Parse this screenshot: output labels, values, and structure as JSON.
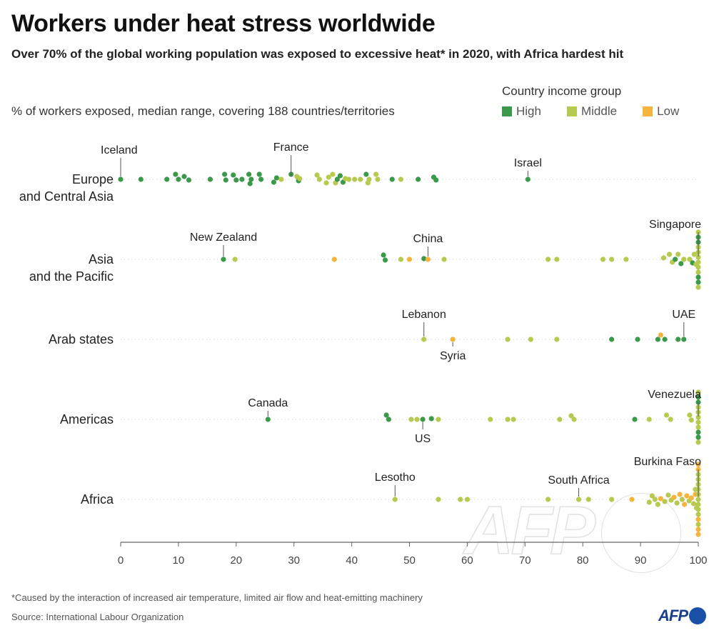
{
  "title": "Workers under heat stress worldwide",
  "subtitle": "Over 70% of the global working population was exposed to excessive heat* in 2020, with Africa hardest hit",
  "unit_label": "% of workers exposed, median range, covering 188 countries/territories",
  "legend": {
    "title": "Country income group",
    "items": [
      {
        "label": "High",
        "color": "#3a9a4a"
      },
      {
        "label": "Middle",
        "color": "#b7c94e"
      },
      {
        "label": "Low",
        "color": "#f5b43d"
      }
    ]
  },
  "footnote": "*Caused by the interaction of increased air temperature, limited air flow and heat-emitting machinery",
  "source": "Source: International Labour Organization",
  "logo": "AFP",
  "chart_data": {
    "type": "scatter",
    "xlim": [
      0,
      100
    ],
    "xticks": [
      0,
      10,
      20,
      30,
      40,
      50,
      60,
      70,
      80,
      90,
      100
    ],
    "grid": "dotted horizontal row guides",
    "colors": {
      "high": "#3a9a4a",
      "middle": "#b7c94e",
      "low": "#f5b43d"
    },
    "regions": [
      {
        "label_lines": [
          "Europe",
          "and Central Asia"
        ],
        "points": [
          {
            "x": 0,
            "g": "high",
            "o": 0
          },
          {
            "x": 3.5,
            "g": "high",
            "o": 0
          },
          {
            "x": 8,
            "g": "high",
            "o": 0
          },
          {
            "x": 9.5,
            "g": "high",
            "o": -7
          },
          {
            "x": 10,
            "g": "high",
            "o": 0
          },
          {
            "x": 11,
            "g": "high",
            "o": -4
          },
          {
            "x": 11.8,
            "g": "high",
            "o": 1
          },
          {
            "x": 15.5,
            "g": "high",
            "o": 0
          },
          {
            "x": 18,
            "g": "high",
            "o": -7
          },
          {
            "x": 18.2,
            "g": "high",
            "o": 1
          },
          {
            "x": 19.5,
            "g": "high",
            "o": -6
          },
          {
            "x": 20,
            "g": "high",
            "o": 1
          },
          {
            "x": 21,
            "g": "high",
            "o": 0
          },
          {
            "x": 22.2,
            "g": "high",
            "o": -7
          },
          {
            "x": 22.4,
            "g": "high",
            "o": 6
          },
          {
            "x": 22.6,
            "g": "high",
            "o": 0
          },
          {
            "x": 24,
            "g": "high",
            "o": -7
          },
          {
            "x": 24.3,
            "g": "high",
            "o": 0
          },
          {
            "x": 26.5,
            "g": "high",
            "o": 4
          },
          {
            "x": 27,
            "g": "high",
            "o": -2
          },
          {
            "x": 27.8,
            "g": "middle",
            "o": 0
          },
          {
            "x": 29.5,
            "g": "high",
            "o": -7
          },
          {
            "x": 30.5,
            "g": "middle",
            "o": -4
          },
          {
            "x": 30.8,
            "g": "high",
            "o": 2
          },
          {
            "x": 31,
            "g": "middle",
            "o": -1
          },
          {
            "x": 34,
            "g": "middle",
            "o": -6
          },
          {
            "x": 34.4,
            "g": "middle",
            "o": 0
          },
          {
            "x": 35.6,
            "g": "middle",
            "o": 5
          },
          {
            "x": 36,
            "g": "middle",
            "o": -3
          },
          {
            "x": 36.7,
            "g": "middle",
            "o": -7
          },
          {
            "x": 37.2,
            "g": "middle",
            "o": 5
          },
          {
            "x": 37.5,
            "g": "high",
            "o": 0
          },
          {
            "x": 38,
            "g": "high",
            "o": -5
          },
          {
            "x": 38.5,
            "g": "high",
            "o": 4
          },
          {
            "x": 38.9,
            "g": "middle",
            "o": -1
          },
          {
            "x": 39.5,
            "g": "middle",
            "o": 0
          },
          {
            "x": 40.5,
            "g": "middle",
            "o": 0
          },
          {
            "x": 41.5,
            "g": "middle",
            "o": 0
          },
          {
            "x": 42.5,
            "g": "high",
            "o": -7
          },
          {
            "x": 42.8,
            "g": "middle",
            "o": 5
          },
          {
            "x": 43,
            "g": "middle",
            "o": 0
          },
          {
            "x": 44.2,
            "g": "middle",
            "o": -7
          },
          {
            "x": 44.5,
            "g": "middle",
            "o": 0
          },
          {
            "x": 47,
            "g": "high",
            "o": 0
          },
          {
            "x": 48.5,
            "g": "middle",
            "o": 0
          },
          {
            "x": 51.5,
            "g": "high",
            "o": 0
          },
          {
            "x": 54.2,
            "g": "high",
            "o": -3
          },
          {
            "x": 54.6,
            "g": "high",
            "o": 1
          },
          {
            "x": 70.5,
            "g": "high",
            "o": 0
          }
        ],
        "callouts": [
          {
            "label": "Iceland",
            "x": 0,
            "dy": -36
          },
          {
            "label": "France",
            "x": 29.5,
            "dy": -40
          },
          {
            "label": "Israel",
            "x": 70.5,
            "dy": -18
          }
        ]
      },
      {
        "label_lines": [
          "Asia",
          "and the Pacific"
        ],
        "points": [
          {
            "x": 17.8,
            "g": "high",
            "o": 0
          },
          {
            "x": 19.8,
            "g": "middle",
            "o": 0
          },
          {
            "x": 37,
            "g": "low",
            "o": 0
          },
          {
            "x": 45.5,
            "g": "high",
            "o": -6
          },
          {
            "x": 45.8,
            "g": "high",
            "o": 1
          },
          {
            "x": 48.5,
            "g": "middle",
            "o": 0
          },
          {
            "x": 50,
            "g": "low",
            "o": 0
          },
          {
            "x": 52.5,
            "g": "high",
            "o": -1
          },
          {
            "x": 53.2,
            "g": "low",
            "o": 0
          },
          {
            "x": 56,
            "g": "middle",
            "o": 0
          },
          {
            "x": 74,
            "g": "middle",
            "o": 0
          },
          {
            "x": 75.5,
            "g": "middle",
            "o": 0
          },
          {
            "x": 83.5,
            "g": "middle",
            "o": 0
          },
          {
            "x": 85,
            "g": "middle",
            "o": 0
          },
          {
            "x": 87.5,
            "g": "middle",
            "o": 0
          },
          {
            "x": 94,
            "g": "middle",
            "o": -2
          },
          {
            "x": 95,
            "g": "middle",
            "o": -7
          },
          {
            "x": 95.5,
            "g": "middle",
            "o": 4
          },
          {
            "x": 96,
            "g": "high",
            "o": 0
          },
          {
            "x": 96.5,
            "g": "middle",
            "o": -7
          },
          {
            "x": 97,
            "g": "high",
            "o": 6
          },
          {
            "x": 97.5,
            "g": "middle",
            "o": 0
          },
          {
            "x": 98.5,
            "g": "middle",
            "o": 0
          },
          {
            "x": 99,
            "g": "high",
            "o": 5
          },
          {
            "x": 99.3,
            "g": "middle",
            "o": -7
          },
          {
            "x": 99.6,
            "g": "middle",
            "o": 7
          },
          {
            "x": 100,
            "g": "middle",
            "o": -38
          },
          {
            "x": 100,
            "g": "high",
            "o": -31
          },
          {
            "x": 100,
            "g": "high",
            "o": -24
          },
          {
            "x": 100,
            "g": "middle",
            "o": -17
          },
          {
            "x": 100,
            "g": "middle",
            "o": -10
          },
          {
            "x": 100,
            "g": "middle",
            "o": -3
          },
          {
            "x": 100,
            "g": "middle",
            "o": 4
          },
          {
            "x": 100,
            "g": "middle",
            "o": 11
          },
          {
            "x": 100,
            "g": "middle",
            "o": 18
          },
          {
            "x": 100,
            "g": "high",
            "o": 25
          },
          {
            "x": 100,
            "g": "high",
            "o": 32
          },
          {
            "x": 100,
            "g": "middle",
            "o": 39
          }
        ],
        "callouts": [
          {
            "label": "New Zealand",
            "x": 17.8,
            "dy": -26
          },
          {
            "label": "China",
            "x": 53.2,
            "dy": -24
          },
          {
            "label": "Singapore",
            "x": 100,
            "dy": -44
          }
        ]
      },
      {
        "label_lines": [
          "Arab states"
        ],
        "points": [
          {
            "x": 52.5,
            "g": "middle",
            "o": 0
          },
          {
            "x": 57.5,
            "g": "low",
            "o": 0
          },
          {
            "x": 67,
            "g": "middle",
            "o": 0
          },
          {
            "x": 71,
            "g": "middle",
            "o": 0
          },
          {
            "x": 75.5,
            "g": "middle",
            "o": 0
          },
          {
            "x": 85,
            "g": "high",
            "o": 0
          },
          {
            "x": 89.5,
            "g": "high",
            "o": 0
          },
          {
            "x": 93,
            "g": "high",
            "o": 0
          },
          {
            "x": 93.5,
            "g": "low",
            "o": -6
          },
          {
            "x": 94.2,
            "g": "high",
            "o": 0
          },
          {
            "x": 96.5,
            "g": "high",
            "o": 0
          },
          {
            "x": 97.5,
            "g": "high",
            "o": 0
          }
        ],
        "callouts": [
          {
            "label": "Lebanon",
            "x": 52.5,
            "dy": -30
          },
          {
            "label": "Syria",
            "x": 57.5,
            "dy": 28
          },
          {
            "label": "UAE",
            "x": 97.5,
            "dy": -30
          }
        ]
      },
      {
        "label_lines": [
          "Americas"
        ],
        "points": [
          {
            "x": 25.5,
            "g": "high",
            "o": 0
          },
          {
            "x": 46,
            "g": "high",
            "o": -6
          },
          {
            "x": 46.4,
            "g": "high",
            "o": 0
          },
          {
            "x": 50.3,
            "g": "middle",
            "o": 0
          },
          {
            "x": 51.3,
            "g": "middle",
            "o": 0
          },
          {
            "x": 52.3,
            "g": "high",
            "o": 0
          },
          {
            "x": 53.8,
            "g": "high",
            "o": -1
          },
          {
            "x": 55,
            "g": "middle",
            "o": 0
          },
          {
            "x": 64,
            "g": "middle",
            "o": 0
          },
          {
            "x": 67,
            "g": "middle",
            "o": 0
          },
          {
            "x": 68,
            "g": "middle",
            "o": 0
          },
          {
            "x": 76,
            "g": "middle",
            "o": 0
          },
          {
            "x": 78,
            "g": "middle",
            "o": -5
          },
          {
            "x": 78.5,
            "g": "middle",
            "o": 0
          },
          {
            "x": 89,
            "g": "high",
            "o": 0
          },
          {
            "x": 91.5,
            "g": "middle",
            "o": 0
          },
          {
            "x": 94.5,
            "g": "middle",
            "o": -6
          },
          {
            "x": 95.2,
            "g": "middle",
            "o": 0
          },
          {
            "x": 98.5,
            "g": "middle",
            "o": -6
          },
          {
            "x": 98.8,
            "g": "middle",
            "o": 1
          },
          {
            "x": 100,
            "g": "middle",
            "o": -38
          },
          {
            "x": 100,
            "g": "high",
            "o": -31
          },
          {
            "x": 100,
            "g": "high",
            "o": -24
          },
          {
            "x": 100,
            "g": "middle",
            "o": -17
          },
          {
            "x": 100,
            "g": "middle",
            "o": -10
          },
          {
            "x": 100,
            "g": "middle",
            "o": -3
          },
          {
            "x": 100,
            "g": "middle",
            "o": 4
          },
          {
            "x": 100,
            "g": "middle",
            "o": 11
          },
          {
            "x": 100,
            "g": "high",
            "o": 18
          },
          {
            "x": 100,
            "g": "high",
            "o": 25
          },
          {
            "x": 100,
            "g": "middle",
            "o": 32
          }
        ],
        "callouts": [
          {
            "label": "Canada",
            "x": 25.5,
            "dy": -18
          },
          {
            "label": "US",
            "x": 52.3,
            "dy": 32
          },
          {
            "label": "Venezuela",
            "x": 100,
            "dy": -30
          }
        ]
      },
      {
        "label_lines": [
          "Africa"
        ],
        "points": [
          {
            "x": 47.5,
            "g": "middle",
            "o": 0
          },
          {
            "x": 55,
            "g": "middle",
            "o": 0
          },
          {
            "x": 58.8,
            "g": "middle",
            "o": 0
          },
          {
            "x": 60,
            "g": "middle",
            "o": 0
          },
          {
            "x": 74,
            "g": "middle",
            "o": 0
          },
          {
            "x": 79.3,
            "g": "middle",
            "o": 0
          },
          {
            "x": 81,
            "g": "middle",
            "o": 0
          },
          {
            "x": 85,
            "g": "middle",
            "o": 0
          },
          {
            "x": 88.5,
            "g": "low",
            "o": 0
          },
          {
            "x": 91.5,
            "g": "middle",
            "o": 4
          },
          {
            "x": 92,
            "g": "middle",
            "o": -5
          },
          {
            "x": 92.5,
            "g": "middle",
            "o": 0
          },
          {
            "x": 93,
            "g": "middle",
            "o": 7
          },
          {
            "x": 93.5,
            "g": "low",
            "o": -1
          },
          {
            "x": 94.2,
            "g": "middle",
            "o": 3
          },
          {
            "x": 94.8,
            "g": "middle",
            "o": -6
          },
          {
            "x": 95.3,
            "g": "middle",
            "o": 1
          },
          {
            "x": 95.8,
            "g": "low",
            "o": -3
          },
          {
            "x": 96.3,
            "g": "middle",
            "o": 5
          },
          {
            "x": 96.8,
            "g": "low",
            "o": -7
          },
          {
            "x": 97.2,
            "g": "middle",
            "o": 0
          },
          {
            "x": 97.6,
            "g": "low",
            "o": 7
          },
          {
            "x": 98,
            "g": "low",
            "o": -5
          },
          {
            "x": 98.4,
            "g": "middle",
            "o": 2
          },
          {
            "x": 98.8,
            "g": "low",
            "o": -2
          },
          {
            "x": 99.2,
            "g": "middle",
            "o": 6
          },
          {
            "x": 99.5,
            "g": "low",
            "o": -7
          },
          {
            "x": 99.7,
            "g": "middle",
            "o": 12
          },
          {
            "x": 99.5,
            "g": "middle",
            "o": -14
          },
          {
            "x": 100,
            "g": "low",
            "o": -49
          },
          {
            "x": 100,
            "g": "low",
            "o": -42
          },
          {
            "x": 100,
            "g": "middle",
            "o": -35
          },
          {
            "x": 100,
            "g": "middle",
            "o": -28
          },
          {
            "x": 100,
            "g": "middle",
            "o": -21
          },
          {
            "x": 100,
            "g": "middle",
            "o": -14
          },
          {
            "x": 100,
            "g": "middle",
            "o": -7
          },
          {
            "x": 100,
            "g": "middle",
            "o": 0
          },
          {
            "x": 100,
            "g": "middle",
            "o": 7
          },
          {
            "x": 100,
            "g": "middle",
            "o": 14
          },
          {
            "x": 100,
            "g": "middle",
            "o": 21
          },
          {
            "x": 100,
            "g": "low",
            "o": 28
          },
          {
            "x": 100,
            "g": "middle",
            "o": 35
          },
          {
            "x": 100,
            "g": "low",
            "o": 42
          },
          {
            "x": 100,
            "g": "low",
            "o": 49
          }
        ],
        "callouts": [
          {
            "label": "Lesotho",
            "x": 47.5,
            "dy": -26
          },
          {
            "label": "South Africa",
            "x": 79.3,
            "dy": -22
          },
          {
            "label": "Burkina Faso",
            "x": 100,
            "dy": -48
          }
        ]
      }
    ]
  }
}
